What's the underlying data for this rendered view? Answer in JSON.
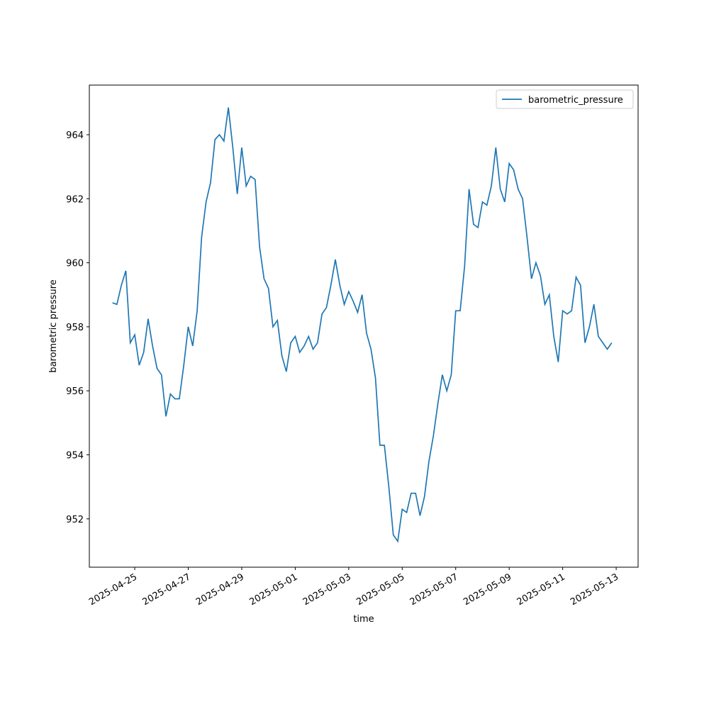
{
  "chart_data": {
    "type": "line",
    "xlabel": "time",
    "ylabel": "barometric pressure",
    "x": [
      "2025-04-24T04:00",
      "2025-04-24T08:00",
      "2025-04-24T12:00",
      "2025-04-24T16:00",
      "2025-04-24T20:00",
      "2025-04-25T00:00",
      "2025-04-25T04:00",
      "2025-04-25T08:00",
      "2025-04-25T12:00",
      "2025-04-25T16:00",
      "2025-04-25T20:00",
      "2025-04-26T00:00",
      "2025-04-26T04:00",
      "2025-04-26T08:00",
      "2025-04-26T12:00",
      "2025-04-26T16:00",
      "2025-04-26T20:00",
      "2025-04-27T00:00",
      "2025-04-27T04:00",
      "2025-04-27T08:00",
      "2025-04-27T12:00",
      "2025-04-27T16:00",
      "2025-04-27T20:00",
      "2025-04-28T00:00",
      "2025-04-28T04:00",
      "2025-04-28T08:00",
      "2025-04-28T12:00",
      "2025-04-28T16:00",
      "2025-04-28T20:00",
      "2025-04-29T00:00",
      "2025-04-29T04:00",
      "2025-04-29T08:00",
      "2025-04-29T12:00",
      "2025-04-29T16:00",
      "2025-04-29T20:00",
      "2025-04-30T00:00",
      "2025-04-30T04:00",
      "2025-04-30T08:00",
      "2025-04-30T12:00",
      "2025-04-30T16:00",
      "2025-04-30T20:00",
      "2025-05-01T00:00",
      "2025-05-01T04:00",
      "2025-05-01T08:00",
      "2025-05-01T12:00",
      "2025-05-01T16:00",
      "2025-05-01T20:00",
      "2025-05-02T00:00",
      "2025-05-02T04:00",
      "2025-05-02T08:00",
      "2025-05-02T12:00",
      "2025-05-02T16:00",
      "2025-05-02T20:00",
      "2025-05-03T00:00",
      "2025-05-03T04:00",
      "2025-05-03T08:00",
      "2025-05-03T12:00",
      "2025-05-03T16:00",
      "2025-05-03T20:00",
      "2025-05-04T00:00",
      "2025-05-04T04:00",
      "2025-05-04T08:00",
      "2025-05-04T12:00",
      "2025-05-04T16:00",
      "2025-05-04T20:00",
      "2025-05-05T00:00",
      "2025-05-05T04:00",
      "2025-05-05T08:00",
      "2025-05-05T12:00",
      "2025-05-05T16:00",
      "2025-05-05T20:00",
      "2025-05-06T00:00",
      "2025-05-06T04:00",
      "2025-05-06T08:00",
      "2025-05-06T12:00",
      "2025-05-06T16:00",
      "2025-05-06T20:00",
      "2025-05-07T00:00",
      "2025-05-07T04:00",
      "2025-05-07T08:00",
      "2025-05-07T12:00",
      "2025-05-07T16:00",
      "2025-05-07T20:00",
      "2025-05-08T00:00",
      "2025-05-08T04:00",
      "2025-05-08T08:00",
      "2025-05-08T12:00",
      "2025-05-08T16:00",
      "2025-05-08T20:00",
      "2025-05-09T00:00",
      "2025-05-09T04:00",
      "2025-05-09T08:00",
      "2025-05-09T12:00",
      "2025-05-09T16:00",
      "2025-05-09T20:00",
      "2025-05-10T00:00",
      "2025-05-10T04:00",
      "2025-05-10T08:00",
      "2025-05-10T12:00",
      "2025-05-10T16:00",
      "2025-05-10T20:00",
      "2025-05-11T00:00",
      "2025-05-11T04:00",
      "2025-05-11T08:00",
      "2025-05-11T12:00",
      "2025-05-11T16:00",
      "2025-05-11T20:00",
      "2025-05-12T00:00",
      "2025-05-12T04:00",
      "2025-05-12T08:00",
      "2025-05-12T12:00",
      "2025-05-12T16:00",
      "2025-05-12T20:00"
    ],
    "series": [
      {
        "name": "barometric_pressure",
        "color": "#1f77b4",
        "values": [
          958.75,
          958.7,
          959.3,
          959.75,
          957.5,
          957.75,
          956.8,
          957.2,
          958.25,
          957.4,
          956.7,
          956.5,
          955.2,
          955.9,
          955.75,
          955.75,
          956.8,
          958.0,
          957.4,
          958.5,
          960.8,
          961.9,
          962.5,
          963.85,
          964.0,
          963.8,
          964.85,
          963.6,
          962.15,
          963.6,
          962.4,
          962.7,
          962.6,
          960.5,
          959.5,
          959.2,
          958.0,
          958.2,
          957.1,
          956.6,
          957.5,
          957.7,
          957.2,
          957.4,
          957.7,
          957.3,
          957.5,
          958.4,
          958.6,
          959.3,
          960.1,
          959.3,
          958.7,
          959.1,
          958.8,
          958.45,
          959.0,
          957.8,
          957.3,
          956.4,
          954.3,
          954.3,
          953.0,
          951.5,
          951.3,
          952.3,
          952.2,
          952.8,
          952.8,
          952.1,
          952.7,
          953.8,
          954.6,
          955.6,
          956.5,
          956.0,
          956.5,
          958.5,
          958.5,
          959.9,
          962.3,
          961.2,
          961.1,
          961.9,
          961.8,
          962.4,
          963.6,
          962.3,
          961.9,
          963.1,
          962.9,
          962.3,
          962.0,
          960.8,
          959.5,
          960.0,
          959.6,
          958.7,
          959.0,
          957.7,
          956.9,
          958.5,
          958.4,
          958.5,
          959.55,
          959.3,
          957.5,
          958.0,
          958.7,
          957.7,
          957.5,
          957.3,
          957.5
        ]
      }
    ],
    "xlim": [
      "2025-04-23T07:15",
      "2025-05-13T19:40"
    ],
    "xticks": [
      "2025-04-25",
      "2025-04-27",
      "2025-04-29",
      "2025-05-01",
      "2025-05-03",
      "2025-05-05",
      "2025-05-07",
      "2025-05-09",
      "2025-05-11",
      "2025-05-13"
    ],
    "ylim": [
      950.49,
      965.55
    ],
    "yticks": [
      952,
      954,
      956,
      958,
      960,
      962,
      964
    ],
    "grid": false,
    "legend": "upper right"
  }
}
